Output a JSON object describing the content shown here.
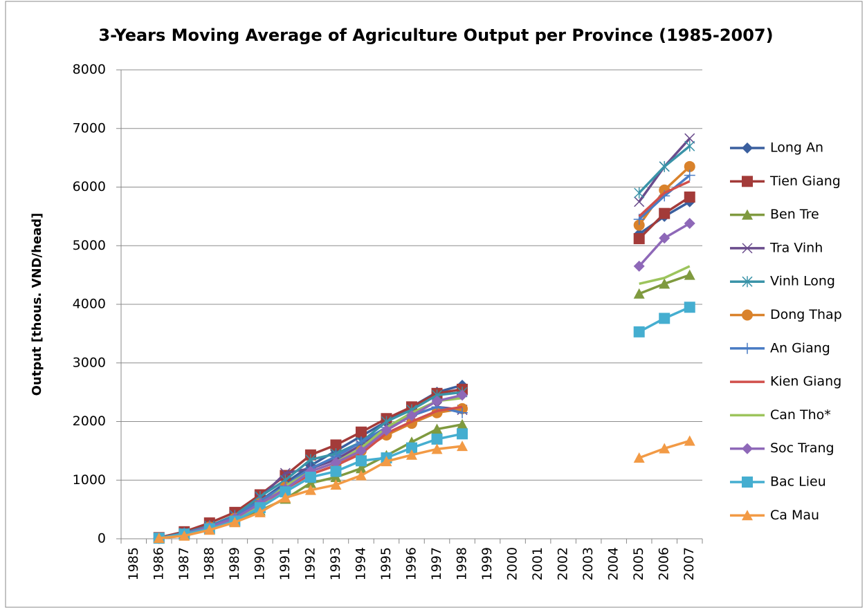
{
  "chart_data": {
    "type": "line",
    "title": "3-Years Moving Average of Agriculture Output per Province (1985-2007)",
    "y_label": "Output [thous. VND/head]",
    "categories": [
      "1985",
      "1986",
      "1987",
      "1988",
      "1989",
      "1990",
      "1991",
      "1992",
      "1993",
      "1994",
      "1995",
      "1996",
      "1997",
      "1998",
      "1999",
      "2000",
      "2001",
      "2002",
      "2003",
      "2004",
      "2005",
      "2006",
      "2007"
    ],
    "ylim": [
      0,
      8000
    ],
    "yticks": [
      0,
      1000,
      2000,
      3000,
      4000,
      5000,
      6000,
      7000,
      8000
    ],
    "grid": true,
    "legend": "right",
    "series": [
      {
        "name": "Long An",
        "color": "#3a5f9e",
        "marker": "diamond",
        "values": [
          null,
          20,
          100,
          220,
          380,
          650,
          950,
          1250,
          1500,
          1750,
          2000,
          2250,
          2500,
          2620,
          null,
          null,
          null,
          null,
          null,
          null,
          5200,
          5500,
          5750
        ]
      },
      {
        "name": "Tien Giang",
        "color": "#a33b39",
        "marker": "square",
        "values": [
          null,
          20,
          120,
          270,
          450,
          750,
          1080,
          1430,
          1600,
          1820,
          2050,
          2250,
          2480,
          2550,
          null,
          null,
          null,
          null,
          null,
          null,
          5120,
          5550,
          5830
        ]
      },
      {
        "name": "Ben Tre",
        "color": "#7f9a3f",
        "marker": "triangle",
        "values": [
          null,
          10,
          70,
          180,
          320,
          480,
          680,
          950,
          1050,
          1200,
          1420,
          1650,
          1870,
          1950,
          null,
          null,
          null,
          null,
          null,
          null,
          4180,
          4350,
          4500
        ]
      },
      {
        "name": "Tra Vinh",
        "color": "#6a4c8c",
        "marker": "x",
        "values": [
          null,
          10,
          90,
          200,
          380,
          700,
          1120,
          1200,
          1350,
          1600,
          1900,
          2100,
          2250,
          2200,
          null,
          null,
          null,
          null,
          null,
          null,
          5750,
          6350,
          6830
        ]
      },
      {
        "name": "Vinh Long",
        "color": "#3a93a8",
        "marker": "star",
        "values": [
          null,
          10,
          100,
          220,
          400,
          720,
          1000,
          1350,
          1450,
          1650,
          2000,
          2200,
          2450,
          2500,
          null,
          null,
          null,
          null,
          null,
          null,
          5900,
          6350,
          6700
        ]
      },
      {
        "name": "Dong Thap",
        "color": "#d9822b",
        "marker": "circle",
        "values": [
          null,
          10,
          80,
          200,
          350,
          600,
          880,
          1100,
          1250,
          1500,
          1770,
          1970,
          2150,
          2220,
          null,
          null,
          null,
          null,
          null,
          null,
          5350,
          5950,
          6350
        ]
      },
      {
        "name": "An Giang",
        "color": "#4a7cc4",
        "marker": "plus",
        "values": [
          null,
          10,
          90,
          210,
          380,
          650,
          900,
          1200,
          1400,
          1650,
          1900,
          2100,
          2250,
          2150,
          null,
          null,
          null,
          null,
          null,
          null,
          5450,
          5850,
          6200
        ]
      },
      {
        "name": "Kien Giang",
        "color": "#d1504c",
        "marker": "none",
        "values": [
          null,
          10,
          80,
          200,
          350,
          580,
          850,
          1100,
          1250,
          1450,
          1800,
          2000,
          2180,
          2250,
          null,
          null,
          null,
          null,
          null,
          null,
          5500,
          5900,
          6100
        ]
      },
      {
        "name": "Can Tho*",
        "color": "#9cc45c",
        "marker": "none",
        "values": [
          null,
          10,
          80,
          190,
          340,
          560,
          900,
          1150,
          1300,
          1550,
          1900,
          2150,
          2350,
          2400,
          null,
          null,
          null,
          null,
          null,
          null,
          4350,
          4450,
          4650
        ]
      },
      {
        "name": "Soc Trang",
        "color": "#8e68b8",
        "marker": "diamond",
        "values": [
          null,
          10,
          80,
          200,
          350,
          600,
          850,
          1150,
          1300,
          1500,
          1850,
          2100,
          2350,
          2450,
          null,
          null,
          null,
          null,
          null,
          null,
          4650,
          5130,
          5380
        ]
      },
      {
        "name": "Bac Lieu",
        "color": "#45aed0",
        "marker": "square",
        "values": [
          null,
          10,
          80,
          170,
          300,
          530,
          800,
          1050,
          1150,
          1330,
          1380,
          1550,
          1700,
          1790,
          null,
          null,
          null,
          null,
          null,
          null,
          3530,
          3760,
          3950
        ]
      },
      {
        "name": "Ca Mau",
        "color": "#f29a45",
        "marker": "triangle",
        "values": [
          null,
          10,
          50,
          150,
          280,
          450,
          700,
          830,
          920,
          1080,
          1320,
          1430,
          1530,
          1580,
          null,
          null,
          null,
          null,
          null,
          null,
          1380,
          1540,
          1670
        ]
      }
    ]
  }
}
